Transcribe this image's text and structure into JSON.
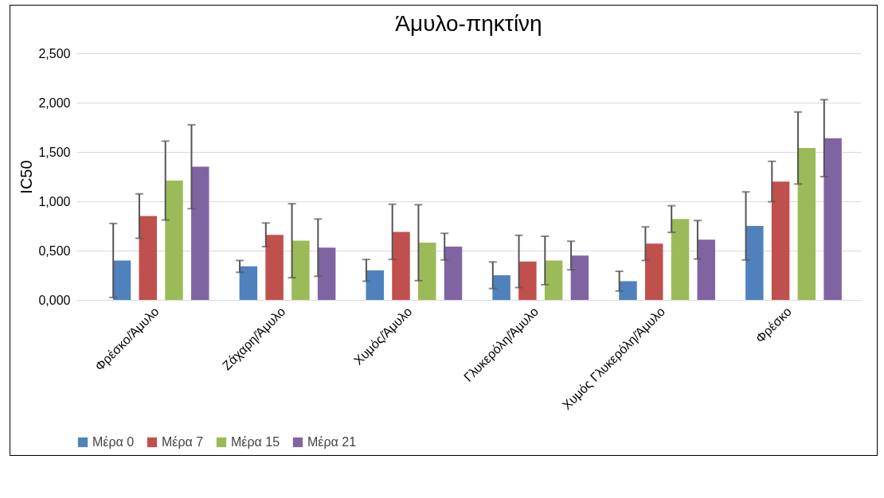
{
  "chart_data": {
    "type": "bar",
    "title": "Άμυλο-πηκτίνη",
    "ylabel": "IC50",
    "categories": [
      "Φρέσκο/Άμυλο",
      "Ζάχαρη/Άμυλο",
      "Χυμός/Άμυλο",
      "Γλυκερόλη/Άμυλο",
      "Χυμός Γλυκερόλη/Άμυλο",
      "Φρέσκο"
    ],
    "series": [
      {
        "name": "Μέρα 0",
        "color": "#4f81bd",
        "values": [
          0.4,
          0.34,
          0.3,
          0.25,
          0.19,
          0.75
        ],
        "errors": [
          0.375,
          0.06,
          0.11,
          0.135,
          0.1,
          0.345
        ]
      },
      {
        "name": "Μέρα 7",
        "color": "#c0504d",
        "values": [
          0.85,
          0.66,
          0.69,
          0.39,
          0.57,
          1.2
        ],
        "errors": [
          0.225,
          0.12,
          0.28,
          0.265,
          0.17,
          0.205
        ]
      },
      {
        "name": "Μέρα 15",
        "color": "#9bbb59",
        "values": [
          1.21,
          0.6,
          0.58,
          0.4,
          0.82,
          1.54
        ],
        "errors": [
          0.4,
          0.375,
          0.385,
          0.245,
          0.135,
          0.365
        ]
      },
      {
        "name": "Μέρα 21",
        "color": "#8064a2",
        "values": [
          1.35,
          0.53,
          0.54,
          0.45,
          0.61,
          1.64
        ],
        "errors": [
          0.425,
          0.29,
          0.135,
          0.145,
          0.195,
          0.39
        ]
      }
    ],
    "ylim": [
      0,
      2.5
    ],
    "yticks": [
      {
        "value": 0,
        "label": "0,000"
      },
      {
        "value": 0.5,
        "label": "0,500"
      },
      {
        "value": 1,
        "label": "1,000"
      },
      {
        "value": 1.5,
        "label": "1,500"
      },
      {
        "value": 2,
        "label": "2,000"
      },
      {
        "value": 2.5,
        "label": "2,500"
      }
    ],
    "grid": "y",
    "legend": "bottom"
  }
}
